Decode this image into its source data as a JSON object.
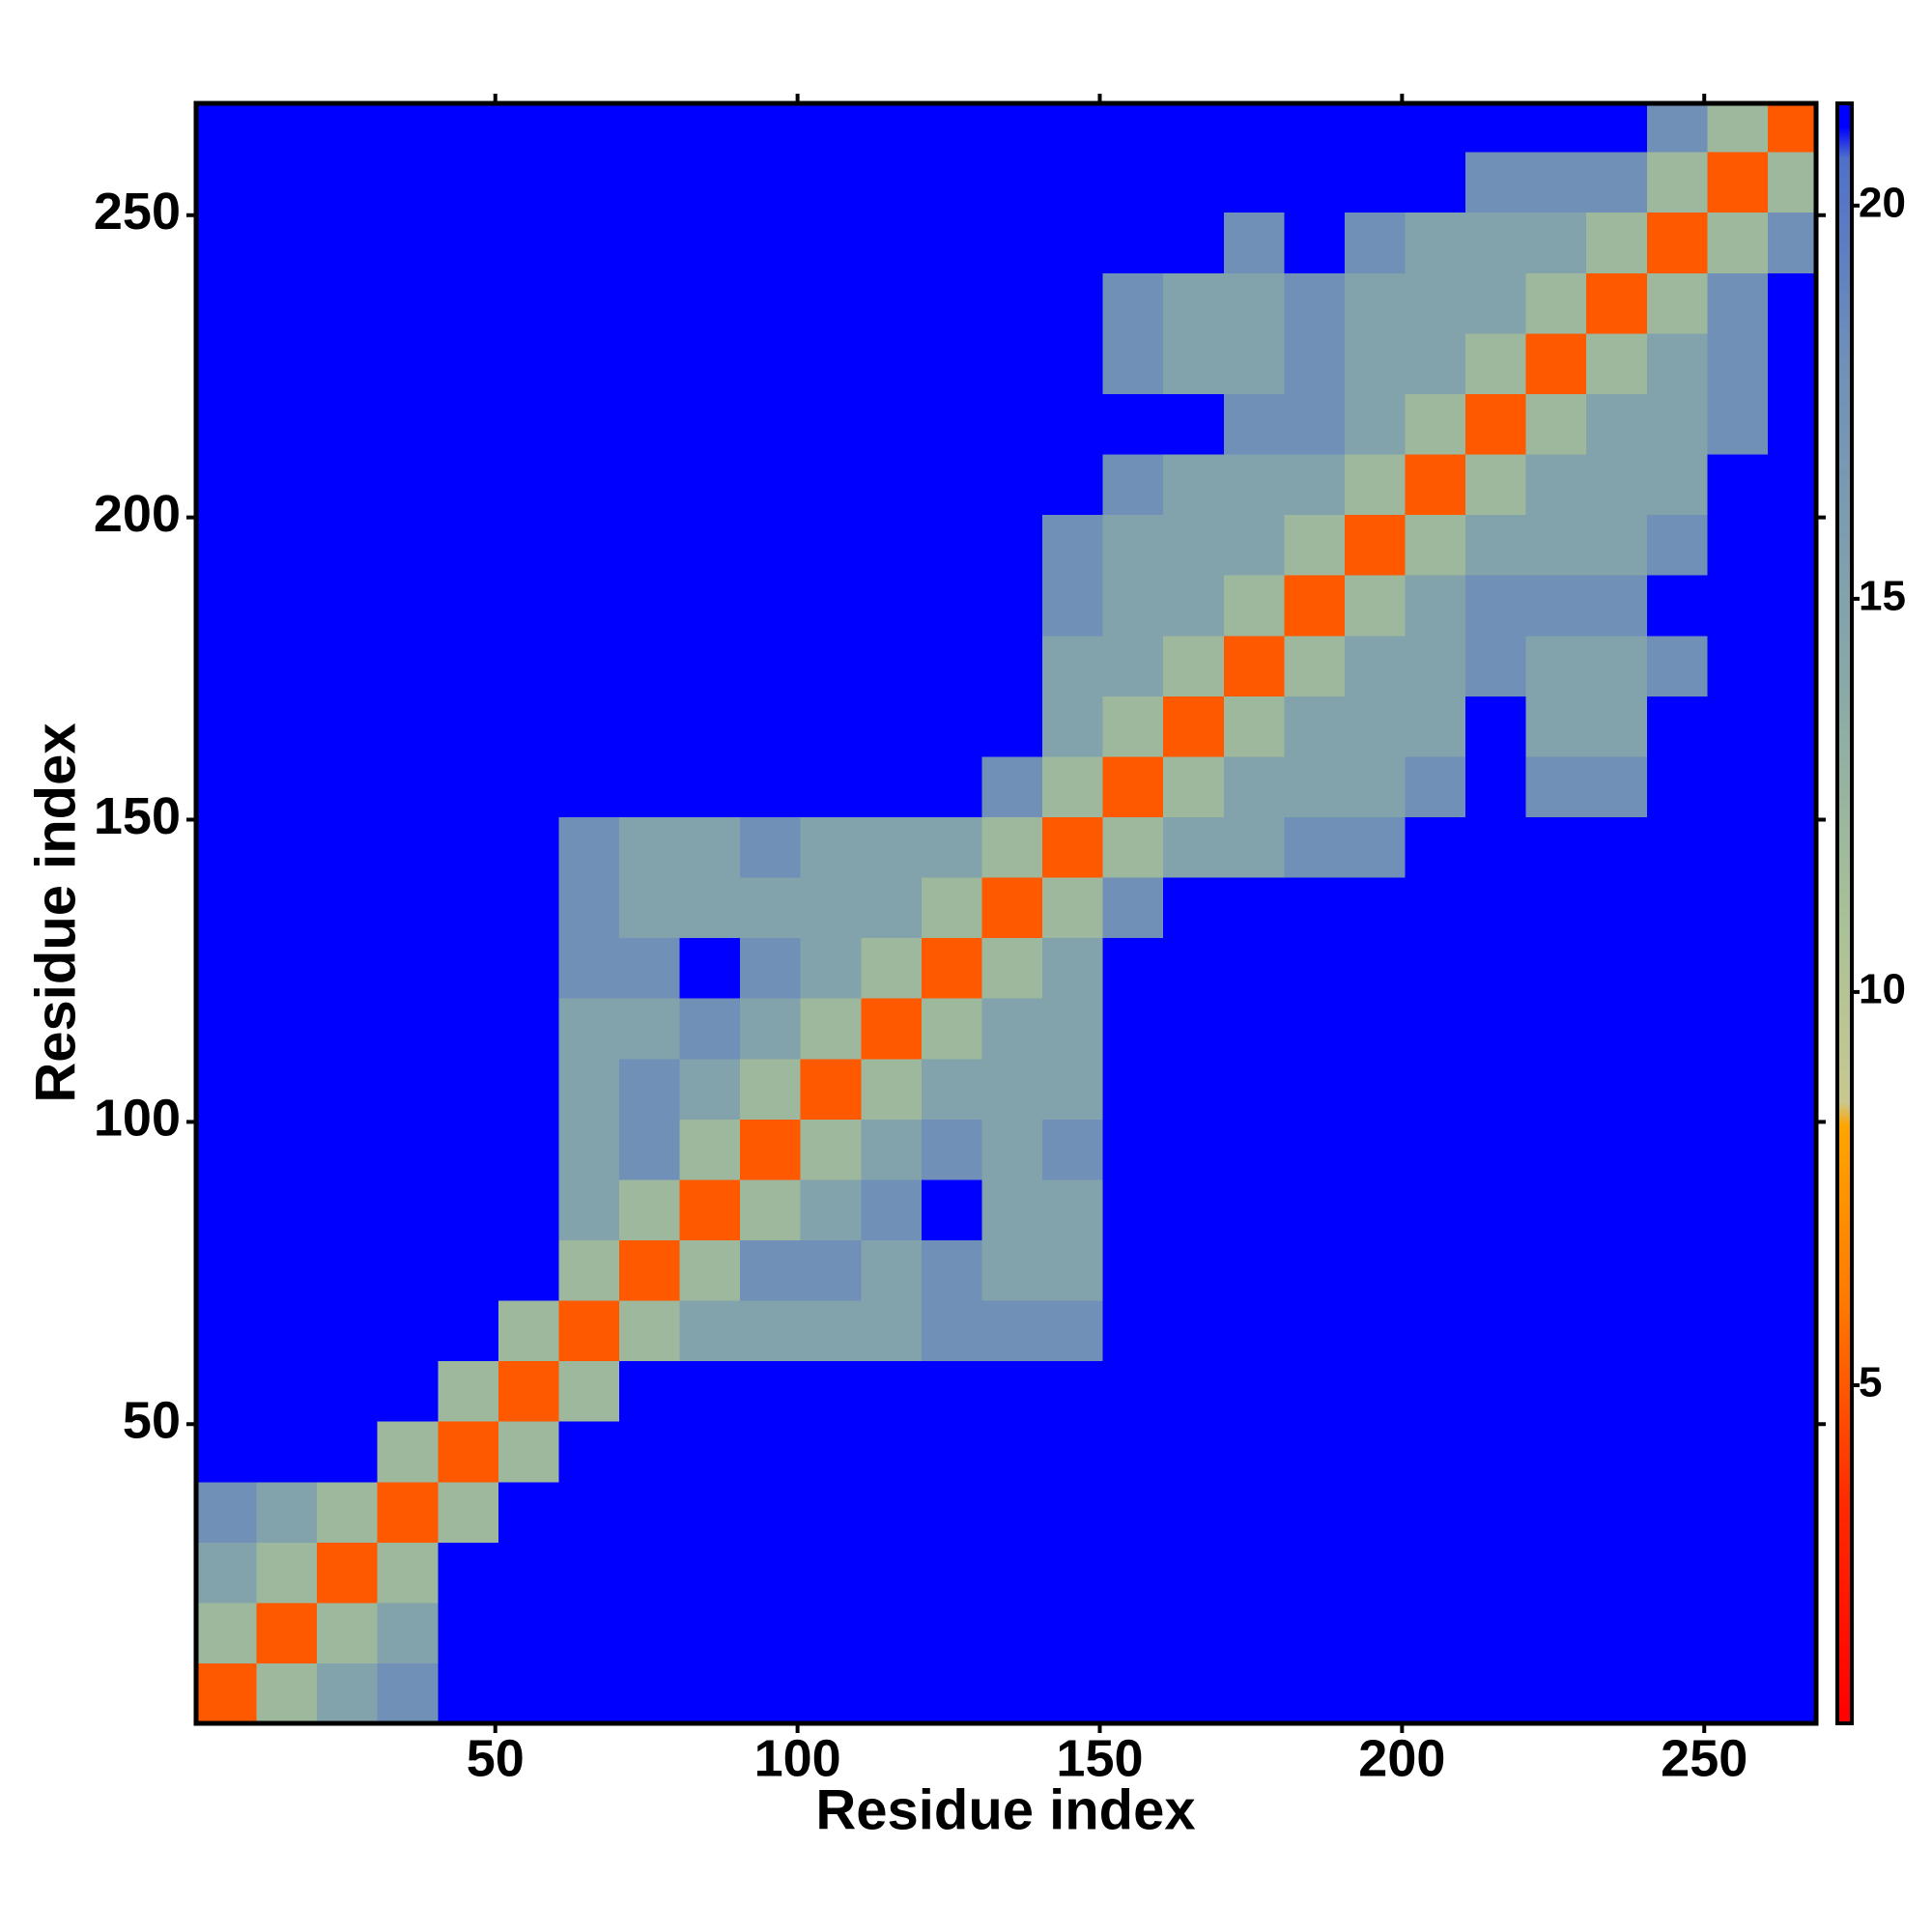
{
  "chart_data": {
    "type": "heatmap",
    "xlabel": "Residue index",
    "ylabel": "Residue index",
    "xlim": [
      0.5,
      268.5
    ],
    "ylim": [
      0.5,
      268.5
    ],
    "xticks": [
      50,
      100,
      150,
      200,
      250
    ],
    "yticks": [
      50,
      100,
      150,
      200,
      250
    ],
    "clim": [
      0.7,
      21.3
    ],
    "colorbar_ticks": [
      5,
      10,
      15,
      20
    ],
    "colorscale": [
      [
        0.7,
        "#ff0000"
      ],
      [
        3.5,
        "#ff2a00"
      ],
      [
        6,
        "#ff7800"
      ],
      [
        8.3,
        "#ffa500"
      ],
      [
        8.6,
        "#c8c890"
      ],
      [
        11,
        "#a8c098"
      ],
      [
        14,
        "#88a8a8"
      ],
      [
        18,
        "#7090b8"
      ],
      [
        20.6,
        "#5070c8"
      ],
      [
        21,
        "#0000ff"
      ]
    ],
    "x_edges": [
      0.5,
      10.5,
      20.5,
      30.5,
      40.5,
      50.5,
      60.5,
      70.5,
      80.5,
      90.5,
      100.5,
      110.5,
      120.5,
      130.5,
      140.5,
      150.5,
      160.5,
      170.5,
      180.5,
      190.5,
      200.5,
      210.5,
      220.5,
      230.5,
      240.5,
      250.5,
      260.5,
      268.5
    ],
    "y_edges": [
      0.5,
      10.5,
      20.5,
      30.5,
      40.5,
      50.5,
      60.5,
      70.5,
      80.5,
      90.5,
      100.5,
      110.5,
      120.5,
      130.5,
      140.5,
      150.5,
      160.5,
      170.5,
      180.5,
      190.5,
      200.5,
      210.5,
      220.5,
      230.5,
      240.5,
      250.5,
      260.5,
      268.5
    ],
    "z": [
      [
        5,
        12,
        15,
        18,
        21,
        21,
        21,
        21,
        21,
        21,
        21,
        21,
        21,
        21,
        21,
        21,
        21,
        21,
        21,
        21,
        21,
        21,
        21,
        21,
        21,
        21,
        21
      ],
      [
        12,
        5,
        12,
        15,
        21,
        21,
        21,
        21,
        21,
        21,
        21,
        21,
        21,
        21,
        21,
        21,
        21,
        21,
        21,
        21,
        21,
        21,
        21,
        21,
        21,
        21,
        21
      ],
      [
        15,
        12,
        5,
        12,
        21,
        21,
        21,
        21,
        21,
        21,
        21,
        21,
        21,
        21,
        21,
        21,
        21,
        21,
        21,
        21,
        21,
        21,
        21,
        21,
        21,
        21,
        21
      ],
      [
        18,
        15,
        12,
        5,
        12,
        21,
        21,
        21,
        21,
        21,
        21,
        21,
        21,
        21,
        21,
        21,
        21,
        21,
        21,
        21,
        21,
        21,
        21,
        21,
        21,
        21,
        21
      ],
      [
        21,
        21,
        21,
        12,
        5,
        12,
        21,
        21,
        21,
        21,
        21,
        21,
        21,
        21,
        21,
        21,
        21,
        21,
        21,
        21,
        21,
        21,
        21,
        21,
        21,
        21,
        21
      ],
      [
        21,
        21,
        21,
        21,
        12,
        5,
        12,
        21,
        21,
        21,
        21,
        21,
        21,
        21,
        21,
        21,
        21,
        21,
        21,
        21,
        21,
        21,
        21,
        21,
        21,
        21,
        21
      ],
      [
        21,
        21,
        21,
        21,
        21,
        12,
        5,
        12,
        15,
        15,
        15,
        15,
        18,
        18,
        18,
        21,
        21,
        21,
        21,
        21,
        21,
        21,
        21,
        21,
        21,
        21,
        21
      ],
      [
        21,
        21,
        21,
        21,
        21,
        21,
        12,
        5,
        12,
        18,
        18,
        15,
        18,
        15,
        15,
        21,
        21,
        21,
        21,
        21,
        21,
        21,
        21,
        21,
        21,
        21,
        21
      ],
      [
        21,
        21,
        21,
        21,
        21,
        21,
        15,
        12,
        5,
        12,
        15,
        18,
        21,
        15,
        15,
        21,
        21,
        21,
        21,
        21,
        21,
        21,
        21,
        21,
        21,
        21,
        21
      ],
      [
        21,
        21,
        21,
        21,
        21,
        21,
        15,
        18,
        12,
        5,
        12,
        15,
        18,
        15,
        18,
        21,
        21,
        21,
        21,
        21,
        21,
        21,
        21,
        21,
        21,
        21,
        21
      ],
      [
        21,
        21,
        21,
        21,
        21,
        21,
        15,
        18,
        15,
        12,
        5,
        12,
        15,
        15,
        15,
        21,
        21,
        21,
        21,
        21,
        21,
        21,
        21,
        21,
        21,
        21,
        21
      ],
      [
        21,
        21,
        21,
        21,
        21,
        21,
        15,
        15,
        18,
        15,
        12,
        5,
        12,
        15,
        15,
        21,
        21,
        21,
        21,
        21,
        21,
        21,
        21,
        21,
        21,
        21,
        21
      ],
      [
        21,
        21,
        21,
        21,
        21,
        21,
        18,
        18,
        21,
        18,
        15,
        12,
        5,
        12,
        15,
        21,
        21,
        21,
        21,
        21,
        21,
        21,
        21,
        21,
        21,
        21,
        21
      ],
      [
        21,
        21,
        21,
        21,
        21,
        21,
        18,
        15,
        15,
        15,
        15,
        15,
        12,
        5,
        12,
        18,
        21,
        21,
        21,
        21,
        21,
        21,
        21,
        21,
        21,
        21,
        21
      ],
      [
        21,
        21,
        21,
        21,
        21,
        21,
        18,
        15,
        15,
        18,
        15,
        15,
        15,
        12,
        5,
        12,
        15,
        15,
        18,
        18,
        21,
        21,
        21,
        21,
        21,
        21,
        21
      ],
      [
        21,
        21,
        21,
        21,
        21,
        21,
        21,
        21,
        21,
        21,
        21,
        21,
        21,
        18,
        12,
        5,
        12,
        15,
        15,
        15,
        18,
        21,
        18,
        18,
        21,
        21,
        21
      ],
      [
        21,
        21,
        21,
        21,
        21,
        21,
        21,
        21,
        21,
        21,
        21,
        21,
        21,
        21,
        15,
        12,
        5,
        12,
        15,
        15,
        15,
        21,
        15,
        15,
        21,
        21,
        21
      ],
      [
        21,
        21,
        21,
        21,
        21,
        21,
        21,
        21,
        21,
        21,
        21,
        21,
        21,
        21,
        15,
        15,
        12,
        5,
        12,
        15,
        15,
        18,
        15,
        15,
        18,
        21,
        21
      ],
      [
        21,
        21,
        21,
        21,
        21,
        21,
        21,
        21,
        21,
        21,
        21,
        21,
        21,
        21,
        18,
        15,
        15,
        12,
        5,
        12,
        15,
        18,
        18,
        18,
        21,
        21,
        21
      ],
      [
        21,
        21,
        21,
        21,
        21,
        21,
        21,
        21,
        21,
        21,
        21,
        21,
        21,
        21,
        18,
        15,
        15,
        15,
        12,
        5,
        12,
        15,
        15,
        15,
        18,
        21,
        21
      ],
      [
        21,
        21,
        21,
        21,
        21,
        21,
        21,
        21,
        21,
        21,
        21,
        21,
        21,
        21,
        21,
        18,
        15,
        15,
        15,
        12,
        5,
        12,
        15,
        15,
        15,
        21,
        21
      ],
      [
        21,
        21,
        21,
        21,
        21,
        21,
        21,
        21,
        21,
        21,
        21,
        21,
        21,
        21,
        21,
        21,
        21,
        18,
        18,
        15,
        12,
        5,
        12,
        15,
        15,
        18,
        21
      ],
      [
        21,
        21,
        21,
        21,
        21,
        21,
        21,
        21,
        21,
        21,
        21,
        21,
        21,
        21,
        21,
        18,
        15,
        15,
        18,
        15,
        15,
        12,
        5,
        12,
        15,
        18,
        21
      ],
      [
        21,
        21,
        21,
        21,
        21,
        21,
        21,
        21,
        21,
        21,
        21,
        21,
        21,
        21,
        21,
        18,
        15,
        15,
        18,
        15,
        15,
        15,
        12,
        5,
        12,
        18,
        21
      ],
      [
        21,
        21,
        21,
        21,
        21,
        21,
        21,
        21,
        21,
        21,
        21,
        21,
        21,
        21,
        21,
        21,
        21,
        18,
        21,
        18,
        15,
        15,
        15,
        12,
        5,
        12,
        18
      ],
      [
        21,
        21,
        21,
        21,
        21,
        21,
        21,
        21,
        21,
        21,
        21,
        21,
        21,
        21,
        21,
        21,
        21,
        21,
        21,
        21,
        21,
        18,
        18,
        18,
        12,
        5,
        12
      ],
      [
        21,
        21,
        21,
        21,
        21,
        21,
        21,
        21,
        21,
        21,
        21,
        21,
        21,
        21,
        21,
        21,
        21,
        21,
        21,
        21,
        21,
        21,
        21,
        21,
        18,
        12,
        5
      ]
    ]
  }
}
